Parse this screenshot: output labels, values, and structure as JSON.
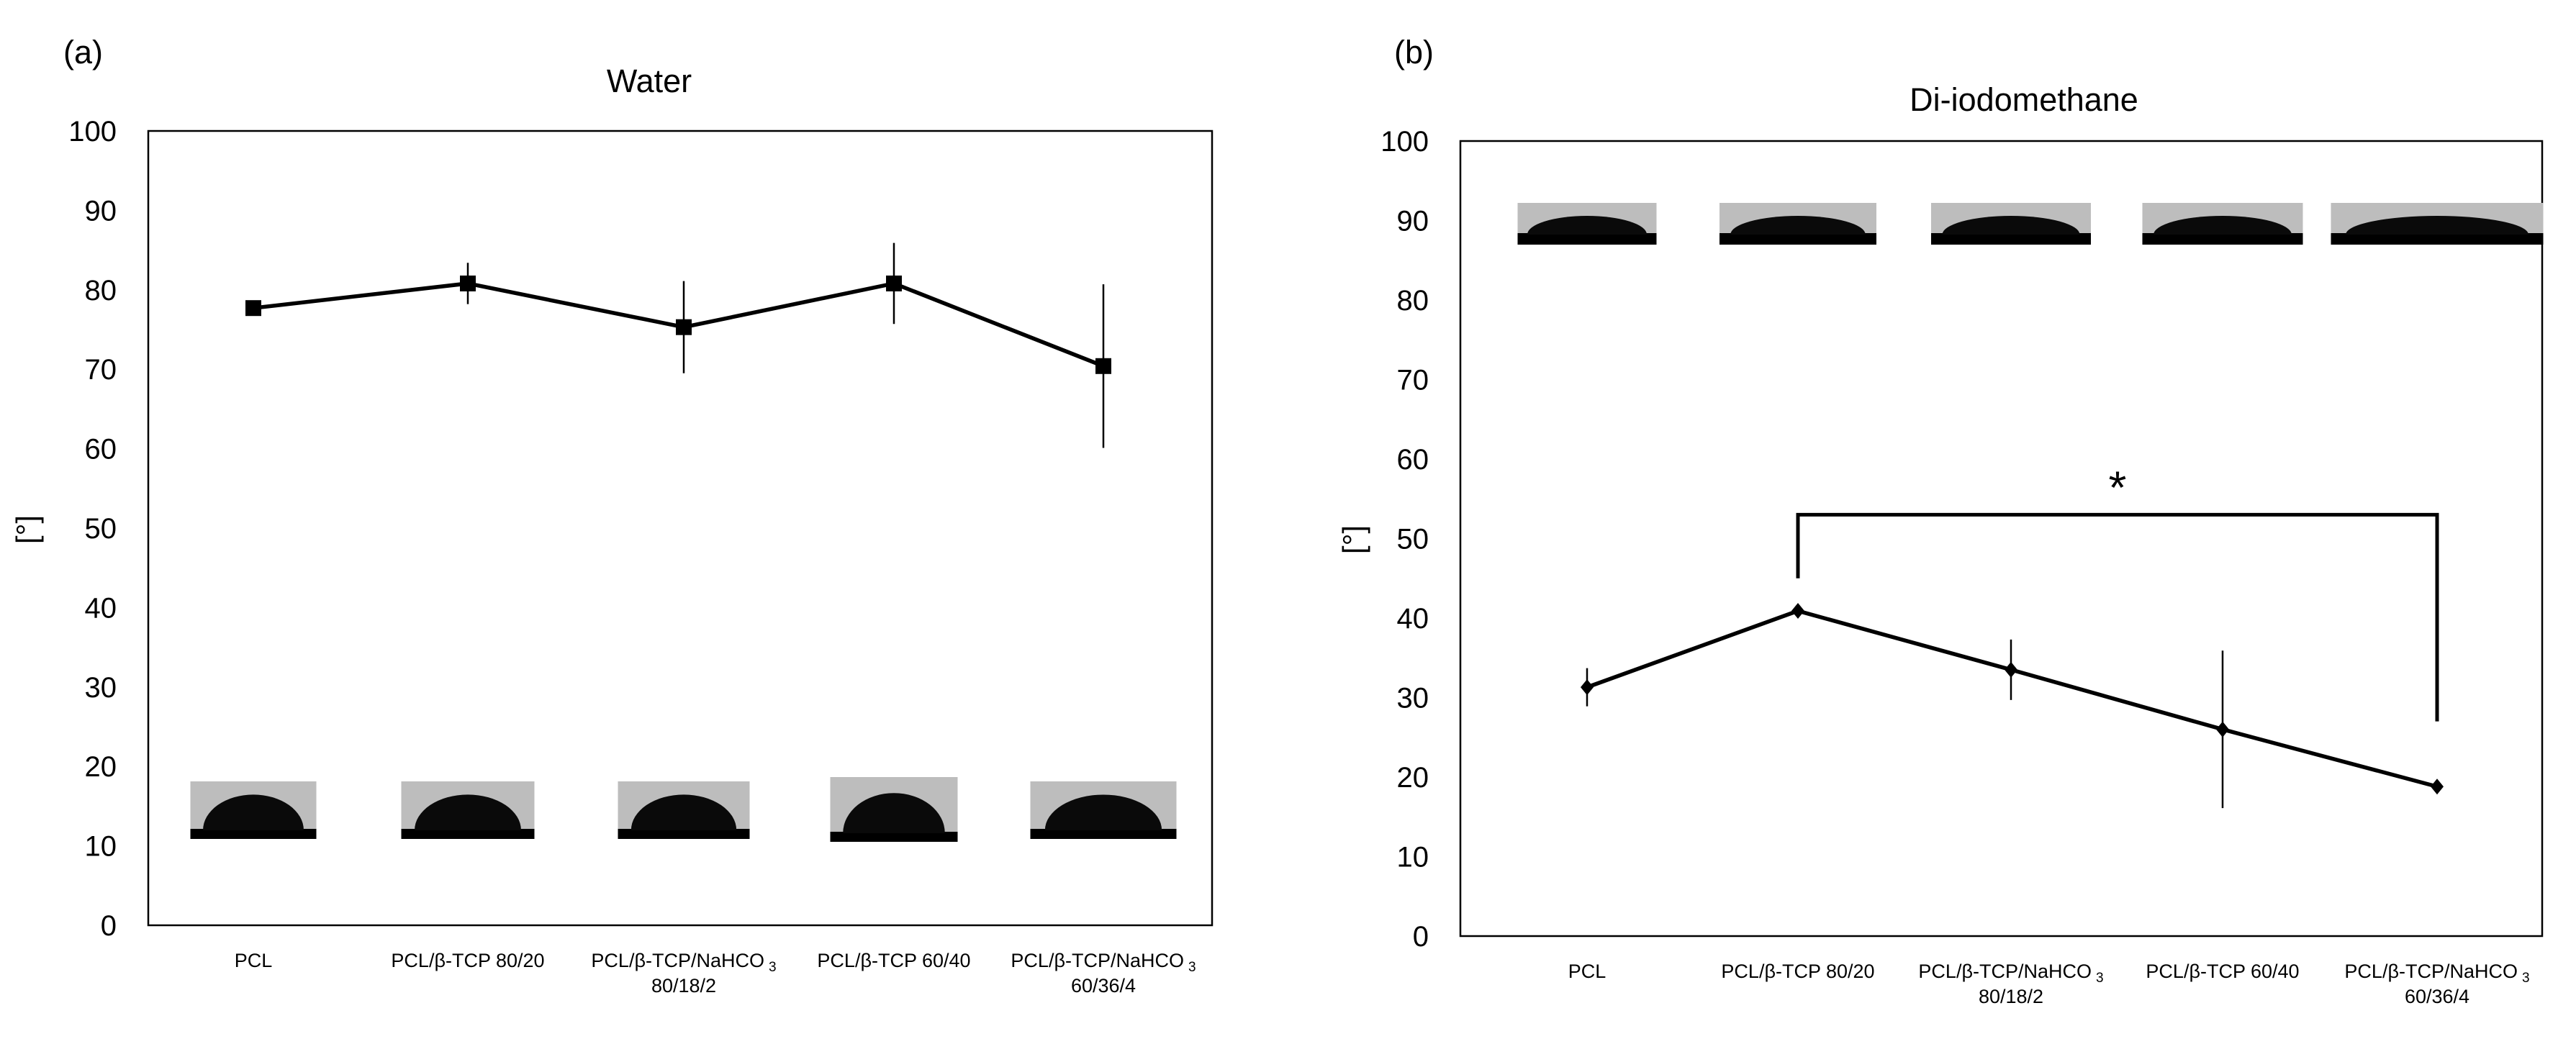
{
  "chart_data": [
    {
      "type": "line",
      "panel_label": "(a)",
      "title": "Water",
      "ylabel": "[°]",
      "xlabel": "",
      "ylim": [
        0,
        100
      ],
      "yticks": [
        0,
        10,
        20,
        30,
        40,
        50,
        60,
        70,
        80,
        90,
        100
      ],
      "grid": false,
      "marker": "square",
      "categories": [
        [
          "PCL"
        ],
        [
          "PCL/β-TCP 80/20"
        ],
        [
          "PCL/β-TCP/NaHCO",
          "80/18/2"
        ],
        [
          "PCL/β-TCP 60/40"
        ],
        [
          "PCL/β-TCP/NaHCO",
          "60/36/4"
        ]
      ],
      "subscript": [
        "",
        "",
        "3",
        "",
        "3"
      ],
      "values": [
        77.7,
        80.8,
        75.3,
        80.8,
        70.4
      ],
      "errors": [
        0.6,
        2.6,
        5.8,
        5.1,
        10.3
      ],
      "inset_images": "droplet-photo",
      "annotations": []
    },
    {
      "type": "line",
      "panel_label": "(b)",
      "title": "Di-iodomethane",
      "ylabel": "[°]",
      "xlabel": "",
      "ylim": [
        0,
        100
      ],
      "yticks": [
        0,
        10,
        20,
        30,
        40,
        50,
        60,
        70,
        80,
        90,
        100
      ],
      "grid": false,
      "marker": "diamond",
      "categories": [
        [
          "PCL"
        ],
        [
          "PCL/β-TCP 80/20"
        ],
        [
          "PCL/β-TCP/NaHCO",
          "80/18/2"
        ],
        [
          "PCL/β-TCP 60/40"
        ],
        [
          "PCL/β-TCP/NaHCO",
          "60/36/4"
        ]
      ],
      "subscript": [
        "",
        "",
        "3",
        "",
        "3"
      ],
      "values": [
        31.3,
        40.9,
        33.5,
        26.0,
        18.8
      ],
      "errors": [
        2.4,
        0.3,
        3.8,
        9.9,
        0.3
      ],
      "inset_images": "droplet-photo",
      "annotations": [
        {
          "text": "*",
          "type": "significance-bracket",
          "from": 1,
          "to": 4,
          "y": 53,
          "left_end": 45,
          "right_end": 27
        }
      ]
    }
  ]
}
